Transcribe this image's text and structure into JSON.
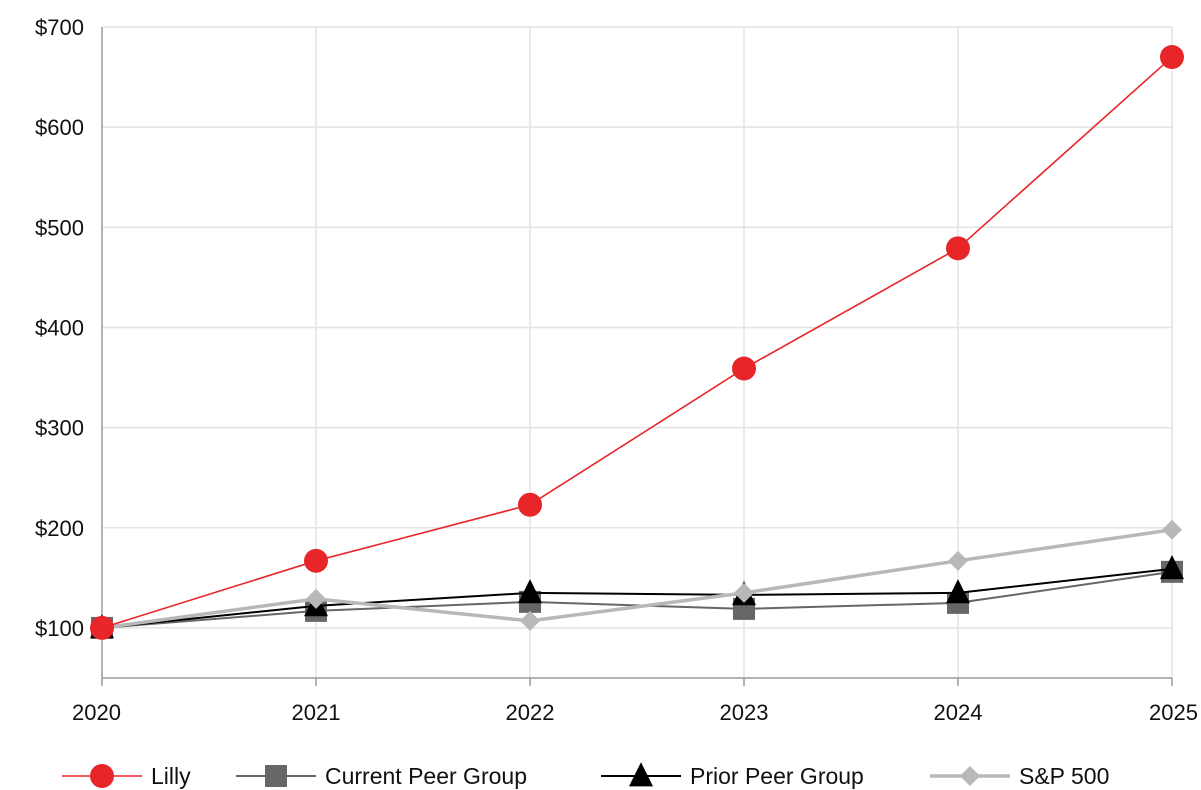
{
  "chart_data": {
    "type": "line",
    "title": "",
    "xlabel": "",
    "ylabel": "",
    "x": [
      "2020",
      "2021",
      "2022",
      "2023",
      "2024",
      "2025"
    ],
    "y_ticks": [
      "$100",
      "$200",
      "$300",
      "$400",
      "$500",
      "$600",
      "$700"
    ],
    "y_tick_values": [
      100,
      200,
      300,
      400,
      500,
      600,
      700
    ],
    "ylim": [
      50,
      700
    ],
    "grid": true,
    "legend_position": "bottom",
    "series": [
      {
        "name": "Lilly",
        "marker": "circle",
        "color": "#e8262a",
        "values": [
          100,
          167,
          223,
          359,
          479,
          670
        ]
      },
      {
        "name": "Current Peer Group",
        "marker": "square",
        "color": "#666666",
        "values": [
          100,
          117,
          126,
          119,
          125,
          156
        ]
      },
      {
        "name": "Prior Peer Group",
        "marker": "triangle",
        "color": "#000000",
        "values": [
          100,
          122,
          135,
          133,
          135,
          159
        ]
      },
      {
        "name": "S&P 500",
        "marker": "diamond",
        "color": "#b8b8b8",
        "values": [
          100,
          129,
          107,
          135,
          167,
          198
        ]
      }
    ]
  }
}
